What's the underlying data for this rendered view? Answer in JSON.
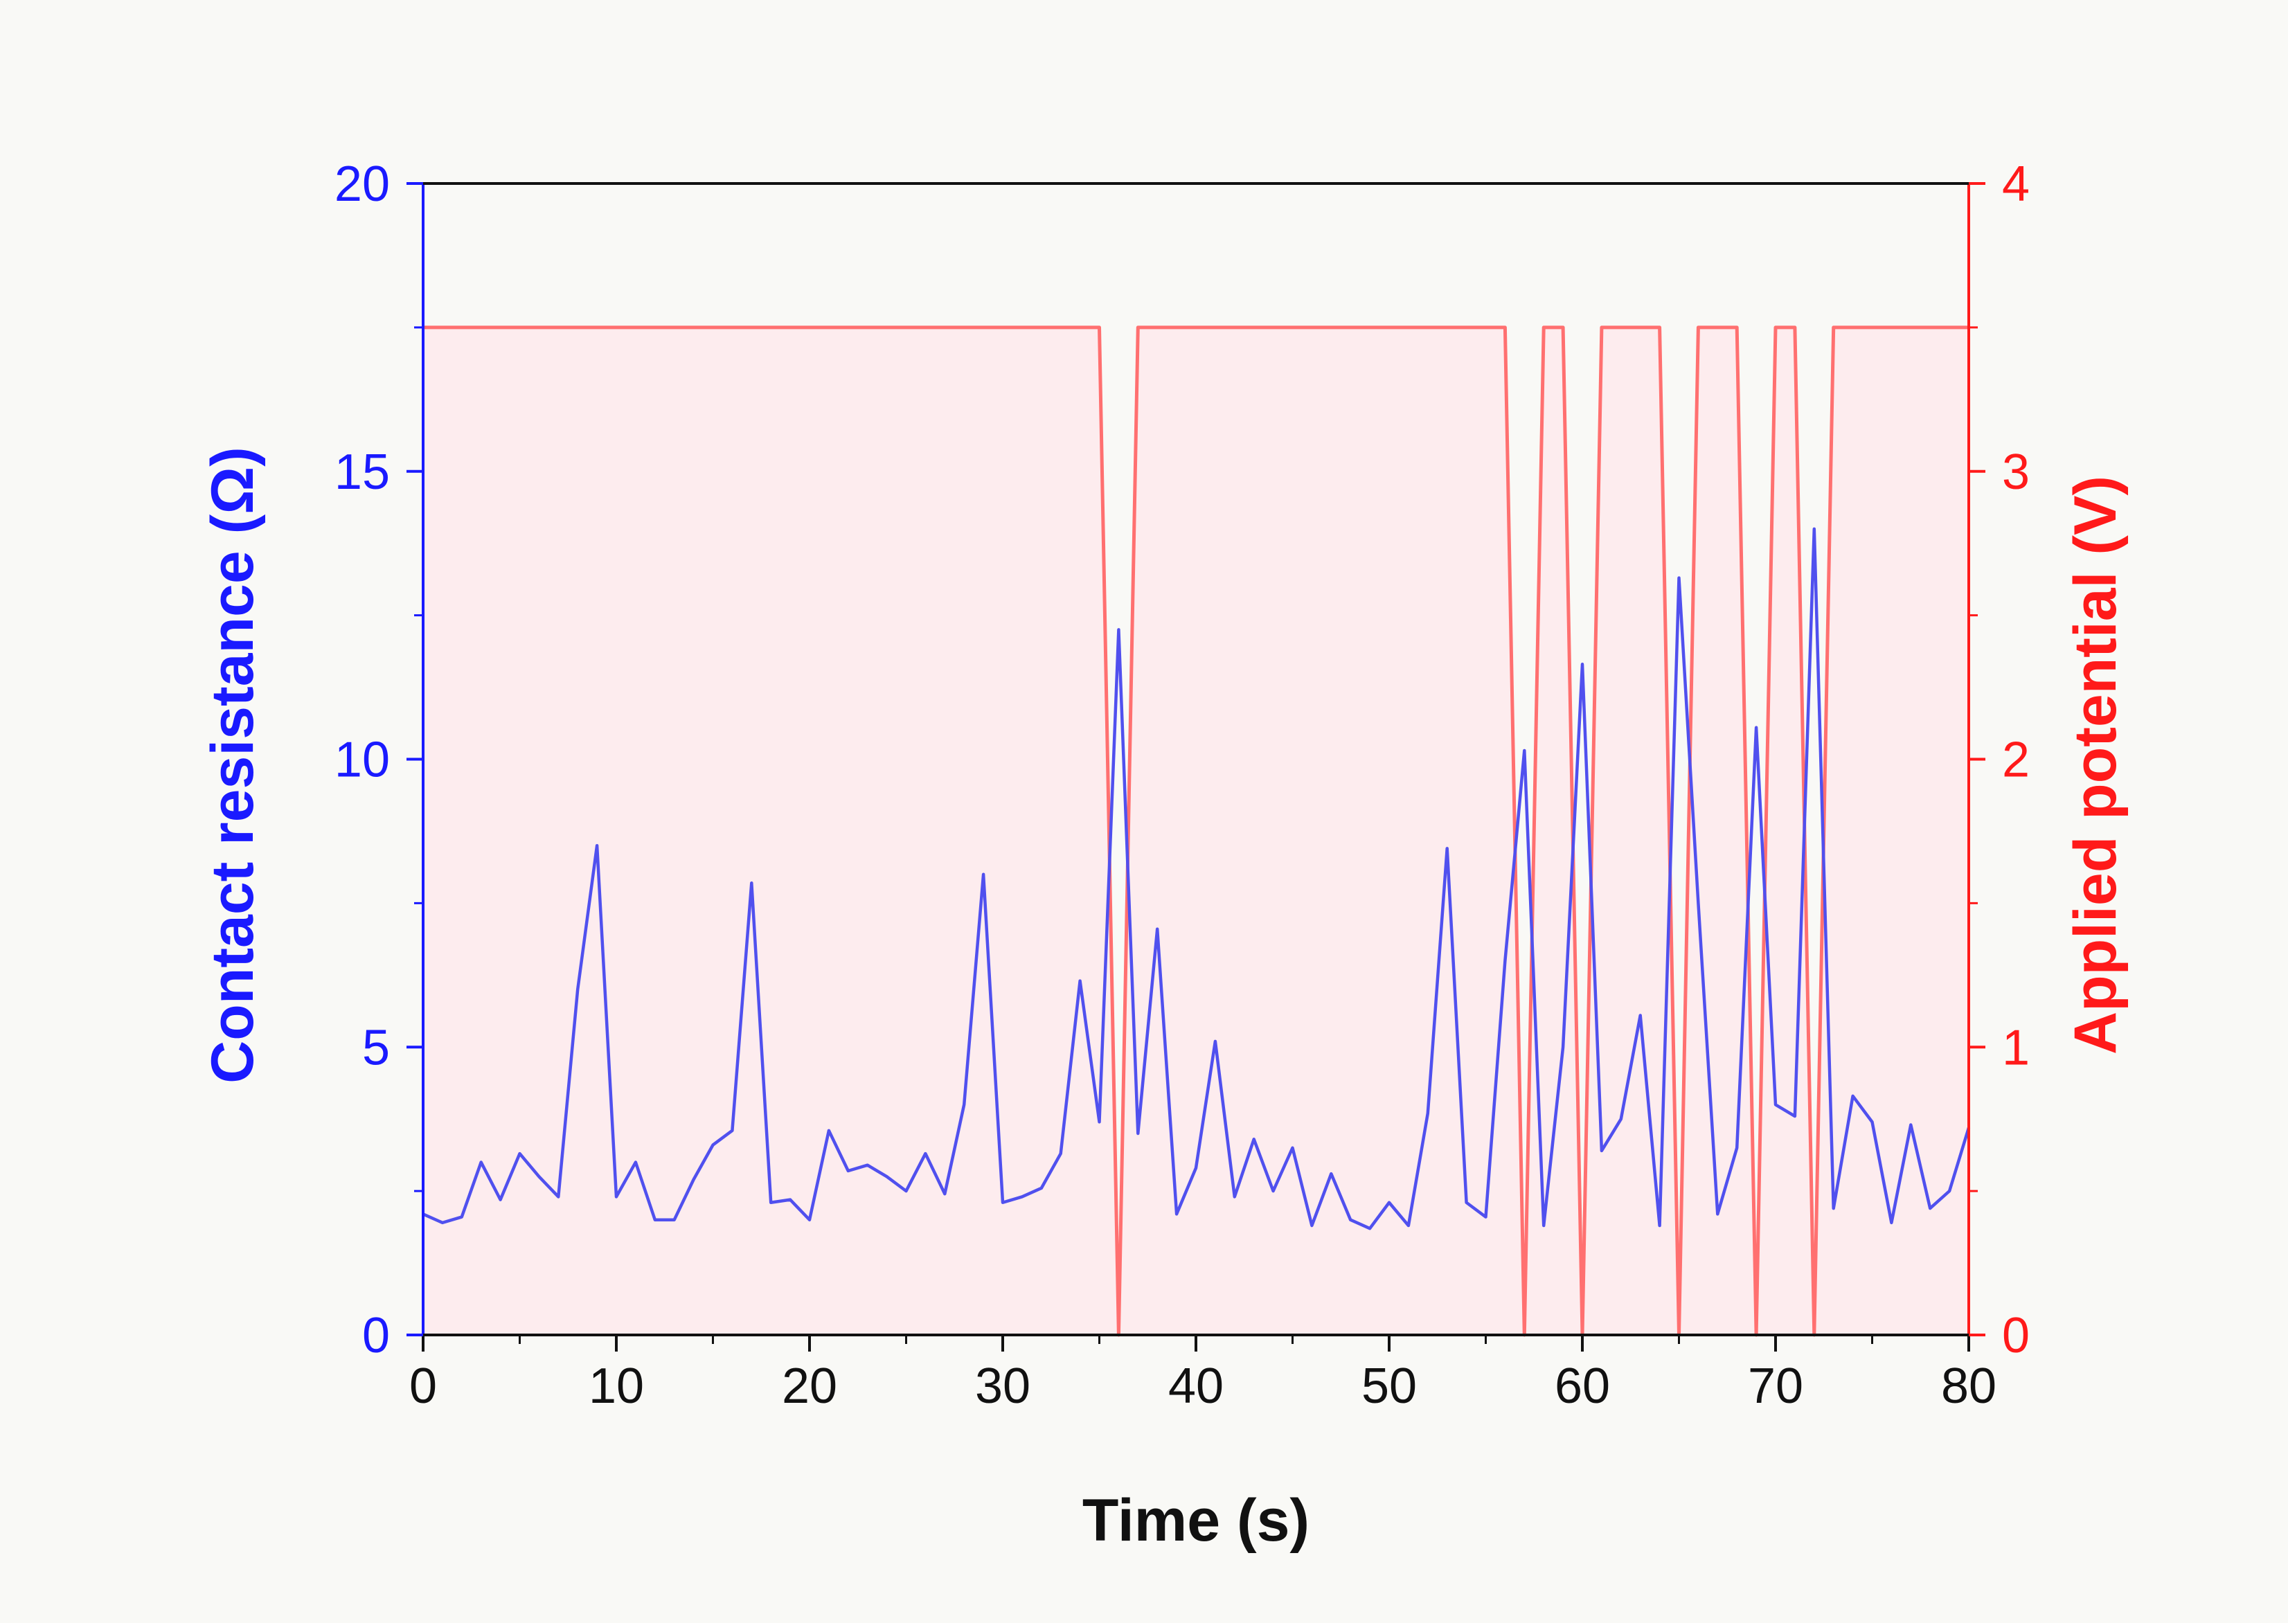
{
  "chart_data": {
    "type": "line",
    "title": "",
    "xlabel": "Time (s)",
    "ylabel_left": "Contact resistance (Ω)",
    "ylabel_right": "Applied potential (V)",
    "xlim": [
      0,
      80
    ],
    "ylim_left": [
      0,
      20
    ],
    "ylim_right": [
      0,
      4
    ],
    "x_ticks": [
      "0",
      "10",
      "20",
      "30",
      "40",
      "50",
      "60",
      "70",
      "80"
    ],
    "y_left_ticks": [
      "0",
      "5",
      "10",
      "15",
      "20"
    ],
    "y_right_ticks": [
      "0",
      "1",
      "2",
      "3",
      "4"
    ],
    "grid": false,
    "colors": {
      "resistance": "#5050ee",
      "resistance_axis": "#1a1aff",
      "potential": "#ff7070",
      "potential_axis": "#ff1a1a",
      "potential_fill": "#fdecee",
      "xaxis": "#111111",
      "background": "#f9f9f6"
    },
    "series": [
      {
        "name": "Contact resistance",
        "axis": "left",
        "x": [
          0,
          1,
          2,
          3,
          4,
          5,
          6,
          7,
          8,
          9,
          10,
          11,
          12,
          13,
          14,
          15,
          16,
          17,
          18,
          19,
          20,
          21,
          22,
          23,
          24,
          25,
          26,
          27,
          28,
          29,
          30,
          31,
          32,
          33,
          34,
          35,
          36,
          37,
          38,
          39,
          40,
          41,
          42,
          43,
          44,
          45,
          46,
          47,
          48,
          49,
          50,
          51,
          52,
          53,
          54,
          55,
          56,
          57,
          58,
          59,
          60,
          61,
          62,
          63,
          64,
          65,
          66,
          67,
          68,
          69,
          70,
          71,
          72,
          73,
          74,
          75,
          76,
          77,
          78,
          79,
          80
        ],
        "values": [
          2.1,
          1.95,
          2.05,
          3.0,
          2.35,
          3.15,
          2.75,
          2.4,
          6.0,
          8.5,
          2.4,
          3.0,
          2.0,
          2.0,
          2.7,
          3.3,
          3.55,
          7.85,
          2.3,
          2.35,
          2.0,
          3.55,
          2.85,
          2.95,
          2.75,
          2.5,
          3.15,
          2.45,
          4.0,
          8.0,
          2.3,
          2.4,
          2.55,
          3.15,
          6.15,
          3.7,
          12.25,
          3.5,
          7.05,
          2.1,
          2.9,
          5.1,
          2.4,
          3.4,
          2.5,
          3.25,
          1.9,
          2.8,
          2.0,
          1.85,
          2.3,
          1.9,
          3.85,
          8.45,
          2.3,
          2.05,
          6.5,
          10.15,
          1.9,
          5.0,
          11.65,
          3.2,
          3.75,
          5.55,
          1.9,
          13.15,
          7.5,
          2.1,
          3.25,
          10.55,
          4.0,
          3.8,
          14.0,
          2.2,
          4.15,
          3.7,
          1.95,
          3.65,
          2.2,
          2.5,
          3.6
        ]
      },
      {
        "name": "Applied potential",
        "axis": "right",
        "x": [
          0,
          35,
          36,
          37,
          56,
          57,
          58,
          59,
          60,
          61,
          64,
          65,
          66,
          68,
          69,
          70,
          71,
          72,
          73,
          80
        ],
        "values": [
          3.5,
          3.5,
          0,
          3.5,
          3.5,
          0,
          3.5,
          3.5,
          0,
          3.5,
          3.5,
          0,
          3.5,
          3.5,
          0,
          3.5,
          3.5,
          0,
          3.5,
          3.5
        ]
      }
    ]
  }
}
